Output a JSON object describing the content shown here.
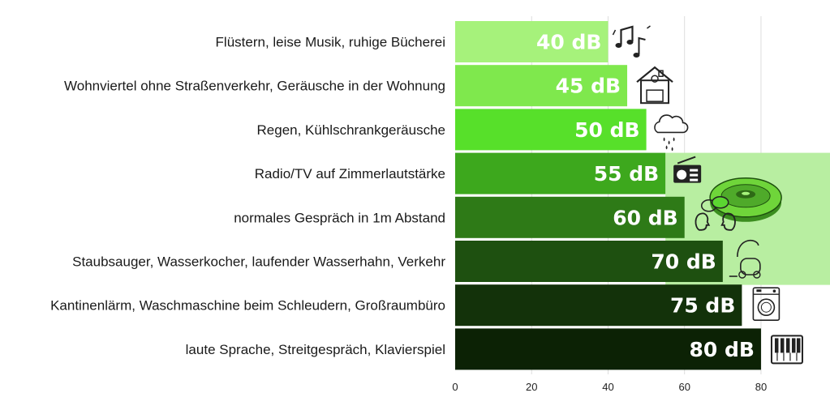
{
  "chart_data": {
    "type": "bar",
    "orientation": "horizontal",
    "categories": [
      "Flüstern, leise Musik, ruhige Bücherei",
      "Wohnviertel ohne Straßenverkehr, Geräusche in der Wohnung",
      "Regen, Kühlschrankgeräusche",
      "Radio/TV auf Zimmerlautstärke",
      "normales Gespräch in 1m Abstand",
      "Staubsauger, Wasserkocher, laufender Wasserhahn, Verkehr",
      "Kantinenlärm, Waschmaschine beim Schleudern, Großraumbüro",
      "laute Sprache, Streitgespräch, Klavierspiel"
    ],
    "values": [
      40,
      45,
      50,
      55,
      60,
      70,
      75,
      80
    ],
    "data_labels": [
      "40 dB",
      "45 dB",
      "50 dB",
      "55 dB",
      "60 dB",
      "70 dB",
      "75 dB",
      "80 dB"
    ],
    "bar_colors": [
      "#a6f27b",
      "#7fe84d",
      "#57e02a",
      "#3da81d",
      "#2e7a17",
      "#1e5010",
      "#13320a",
      "#0c2205"
    ],
    "icons": [
      "music-notes-icon",
      "house-icon",
      "rain-cloud-icon",
      "radio-icon",
      "conversation-icon",
      "vacuum-cleaner-icon",
      "washing-machine-icon",
      "piano-icon"
    ],
    "highlight_icon": "robot-vacuum-icon",
    "highlight_color": "#b8eea1",
    "x_ticks": [
      0,
      20,
      40,
      60,
      80
    ],
    "xlim": [
      0,
      98
    ],
    "grid": true,
    "title": "",
    "xlabel": "",
    "ylabel": ""
  }
}
